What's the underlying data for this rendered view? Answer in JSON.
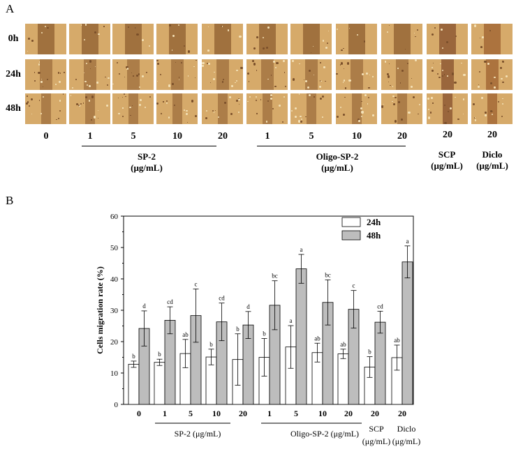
{
  "panelA": {
    "letter": "A",
    "rows": [
      "0h",
      "24h",
      "48h"
    ],
    "columns": [
      {
        "dose": "0",
        "tone": "wound"
      },
      {
        "dose": "1",
        "tone": "wound"
      },
      {
        "dose": "5",
        "tone": "wound"
      },
      {
        "dose": "10",
        "tone": "wound"
      },
      {
        "dose": "20",
        "tone": "wound"
      },
      {
        "dose": "1",
        "tone": "wound"
      },
      {
        "dose": "5",
        "tone": "wound"
      },
      {
        "dose": "10",
        "tone": "wound"
      },
      {
        "dose": "20",
        "tone": "wound"
      },
      {
        "dose": "20",
        "tone": "scp"
      },
      {
        "dose": "20",
        "tone": "diclo"
      }
    ],
    "groups": [
      {
        "label": "SP-2",
        "unit": "(μg/mL)",
        "underline": true
      },
      {
        "label": "Oligo-SP-2",
        "unit": "(μg/mL)",
        "underline": true
      },
      {
        "label": "SCP",
        "unit": "(μg/mL)",
        "underline": false
      },
      {
        "label": "Diclo",
        "unit": "(μg/mL)",
        "underline": false
      }
    ],
    "colors": {
      "background": "#d6aa6a",
      "wound": "#9a6a3a",
      "scp": "#8f5a34",
      "diclo": "#a46a36"
    }
  },
  "panelB": {
    "letter": "B",
    "group_labels": [
      "SP-2 (μg/mL)",
      "Oligo-SP-2 (μg/mL)",
      "SCP (μg/mL)",
      "Diclo (μg/mL)"
    ]
  },
  "chart_data": {
    "type": "bar",
    "categories": [
      "0",
      "1",
      "5",
      "10",
      "20",
      "1",
      "5",
      "10",
      "20",
      "20",
      "20"
    ],
    "series": [
      {
        "name": "24h",
        "color": "#ffffff",
        "values": [
          12.8,
          13.4,
          16.2,
          15.1,
          14.3,
          15.0,
          18.3,
          16.5,
          16.1,
          11.9,
          14.9
        ],
        "errors": [
          1.0,
          1.0,
          4.5,
          2.5,
          8.2,
          6.0,
          6.8,
          3.0,
          1.5,
          3.3,
          4.0
        ],
        "labels": [
          "b",
          "b",
          "ab",
          "b",
          "b",
          "b",
          "a",
          "ab",
          "ab",
          "b",
          "ab"
        ]
      },
      {
        "name": "48h",
        "color": "#bdbdbd",
        "values": [
          24.2,
          26.8,
          28.3,
          26.3,
          25.3,
          31.6,
          43.2,
          32.5,
          30.3,
          26.2,
          45.4
        ],
        "errors": [
          5.6,
          4.3,
          8.5,
          6.0,
          4.3,
          7.8,
          4.6,
          7.2,
          6.0,
          3.5,
          5.1
        ],
        "labels": [
          "d",
          "cd",
          "c",
          "cd",
          "d",
          "bc",
          "a",
          "bc",
          "c",
          "cd",
          "a"
        ]
      }
    ],
    "title": "",
    "xlabel": "",
    "ylabel": "Cells migration rate (%)",
    "ylim": [
      0,
      60
    ],
    "yticks": [
      "0",
      "10",
      "20",
      "30",
      "40",
      "50",
      "60"
    ],
    "legend_position": "top-right",
    "grid": false
  }
}
